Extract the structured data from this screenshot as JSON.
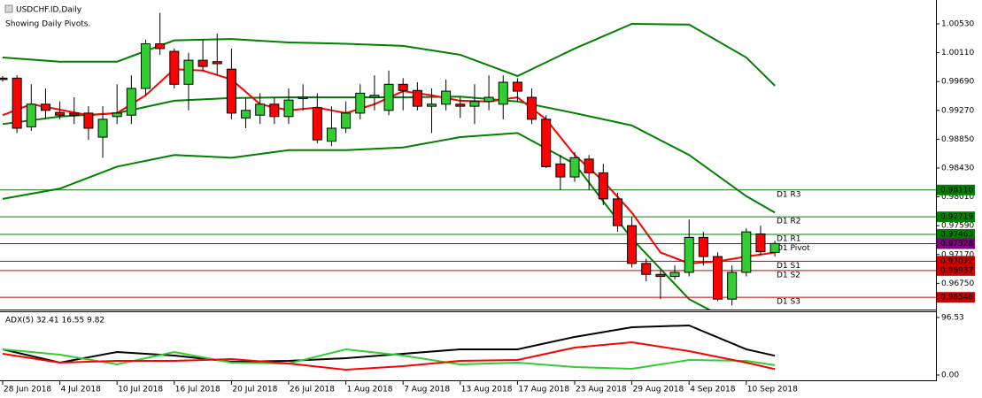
{
  "chart_data": [
    {
      "type": "candlestick",
      "title": "USDCHF.ID,Daily",
      "subtitle": "Showing Daily Pivots.",
      "categories": [
        "28 Jun 2018",
        null,
        null,
        null,
        "4 Jul 2018",
        null,
        null,
        null,
        "10 Jul 2018",
        null,
        null,
        null,
        "16 Jul 2018",
        null,
        null,
        null,
        "20 Jul 2018",
        null,
        null,
        null,
        "26 Jul 2018",
        null,
        null,
        null,
        "1 Aug 2018",
        null,
        null,
        null,
        "7 Aug 2018",
        null,
        null,
        null,
        "13 Aug 2018",
        null,
        null,
        null,
        "17 Aug 2018",
        null,
        null,
        null,
        "23 Aug 2018",
        null,
        null,
        null,
        "29 Aug 2018",
        null,
        null,
        null,
        "4 Sep 2018",
        null,
        null,
        null,
        "10 Sep 2018",
        null,
        null
      ],
      "open": [
        0.9974,
        0.9974,
        0.9903,
        0.9936,
        0.9924,
        0.9923,
        0.9923,
        0.9888,
        0.9918,
        0.992,
        0.9959,
        1.0024,
        1.0013,
        0.9965,
        1.0,
        0.9998,
        0.9987,
        0.9916,
        0.992,
        0.9936,
        0.9918,
        0.9944,
        0.9931,
        0.9882,
        0.9901,
        0.9923,
        0.9946,
        0.9927,
        0.9965,
        0.9956,
        0.9933,
        0.9936,
        0.9936,
        0.9933,
        0.994,
        0.9936,
        0.9968,
        0.9946,
        0.9914,
        0.9849,
        0.983,
        0.9856,
        0.9836,
        0.9798,
        0.9759,
        0.9704,
        0.9688,
        0.9685,
        0.9691,
        0.9742,
        0.9714,
        0.9652,
        0.9691,
        0.9747,
        0.972
      ],
      "high": [
        0.9977,
        0.9978,
        0.9965,
        0.9959,
        0.994,
        0.9946,
        0.9933,
        0.9933,
        0.9965,
        0.9978,
        1.003,
        1.0069,
        1.0017,
        1.0011,
        1.003,
        1.0039,
        1.0017,
        0.9946,
        0.9952,
        0.9946,
        0.9959,
        0.9965,
        0.9952,
        0.9933,
        0.994,
        0.9965,
        0.9978,
        0.9985,
        0.9974,
        0.9968,
        0.9959,
        0.9972,
        0.9946,
        0.9965,
        0.9978,
        0.9978,
        0.9974,
        0.9959,
        0.992,
        0.9862,
        0.9866,
        0.9862,
        0.9849,
        0.9807,
        0.9772,
        0.9711,
        0.9694,
        0.9701,
        0.9768,
        0.975,
        0.972,
        0.9701,
        0.9755,
        0.9759,
        0.9737
      ],
      "low": [
        0.9969,
        0.9894,
        0.9897,
        0.9916,
        0.9914,
        0.9907,
        0.9884,
        0.9858,
        0.9907,
        0.9907,
        0.9949,
        1.0008,
        0.9959,
        0.9927,
        0.9985,
        0.9978,
        0.9914,
        0.9901,
        0.9907,
        0.9907,
        0.9907,
        0.9927,
        0.9879,
        0.9875,
        0.9894,
        0.9914,
        0.9927,
        0.992,
        0.9927,
        0.9927,
        0.9894,
        0.9927,
        0.9916,
        0.9907,
        0.9927,
        0.9914,
        0.994,
        0.9907,
        0.9843,
        0.9811,
        0.9823,
        0.9811,
        0.9789,
        0.975,
        0.9698,
        0.9678,
        0.9652,
        0.9681,
        0.9685,
        0.9701,
        0.9649,
        0.9643,
        0.9685,
        0.9716,
        0.9714
      ],
      "close": [
        0.9972,
        0.9901,
        0.9936,
        0.9927,
        0.992,
        0.992,
        0.9901,
        0.9914,
        0.9923,
        0.9959,
        1.0024,
        1.0017,
        0.9965,
        1.0,
        0.9991,
        0.9995,
        0.9923,
        0.9927,
        0.9936,
        0.9918,
        0.9942,
        0.9946,
        0.9884,
        0.9901,
        0.9923,
        0.9952,
        0.9949,
        0.9965,
        0.9956,
        0.9933,
        0.9936,
        0.9955,
        0.9933,
        0.994,
        0.9946,
        0.9968,
        0.9955,
        0.9914,
        0.9845,
        0.983,
        0.9858,
        0.9836,
        0.9798,
        0.9759,
        0.9704,
        0.9688,
        0.9685,
        0.9691,
        0.9742,
        0.9714,
        0.9652,
        0.9691,
        0.975,
        0.9721,
        0.9733
      ],
      "up_color": "#32cd32",
      "down_color": "#ff0000",
      "ylim": [
        0.96368,
        1.00878
      ],
      "yticks": [
        {
          "value": 1.0053,
          "label": "1.00530"
        },
        {
          "value": 1.0011,
          "label": "1.00110"
        },
        {
          "value": 0.9969,
          "label": "0.99690"
        },
        {
          "value": 0.9927,
          "label": "0.99270"
        },
        {
          "value": 0.9885,
          "label": "0.98850"
        },
        {
          "value": 0.9843,
          "label": "0.98430"
        },
        {
          "value": 0.9801,
          "label": "0.98010"
        },
        {
          "value": 0.9759,
          "label": "0.97590"
        },
        {
          "value": 0.9717,
          "label": "0.97170"
        },
        {
          "value": 0.9675,
          "label": "0.96750"
        }
      ],
      "lines": [
        {
          "color": "#008000",
          "x": [
            0,
            4,
            8,
            12,
            16,
            20,
            24,
            28,
            32,
            36,
            40,
            44,
            48,
            52,
            54
          ],
          "values": [
            1.0004,
            0.9998,
            0.9998,
            1.0029,
            1.0031,
            1.0026,
            1.0024,
            1.0021,
            1.0008,
            0.9977,
            1.0017,
            1.0053,
            1.0052,
            1.0004,
            0.9963
          ]
        },
        {
          "color": "#008000",
          "x": [
            0,
            4,
            8,
            12,
            16,
            20,
            24,
            28,
            32,
            36,
            40,
            44,
            48,
            52,
            54
          ],
          "values": [
            0.9907,
            0.9918,
            0.9923,
            0.9941,
            0.9945,
            0.9946,
            0.9946,
            0.9946,
            0.9947,
            0.994,
            0.9923,
            0.9905,
            0.9862,
            0.9802,
            0.9778
          ]
        },
        {
          "color": "#008000",
          "x": [
            0,
            4,
            8,
            12,
            16,
            20,
            24,
            28,
            32,
            36,
            40,
            44,
            48,
            50
          ],
          "values": [
            0.9798,
            0.9813,
            0.9845,
            0.9862,
            0.9858,
            0.9869,
            0.9869,
            0.9873,
            0.9888,
            0.9894,
            0.9849,
            0.974,
            0.9652,
            0.963
          ]
        },
        {
          "color": "#ff0000",
          "x": [
            0,
            2,
            4,
            6,
            8,
            10,
            12,
            14,
            16,
            18,
            20,
            22,
            24,
            26,
            28,
            30,
            32,
            34,
            36,
            38,
            40,
            42,
            44,
            46,
            48,
            50,
            52,
            54
          ],
          "values": [
            0.992,
            0.9936,
            0.9928,
            0.992,
            0.9923,
            0.9949,
            0.9987,
            0.9985,
            0.9972,
            0.9936,
            0.9927,
            0.9931,
            0.9923,
            0.9936,
            0.9955,
            0.9949,
            0.9941,
            0.994,
            0.9946,
            0.9914,
            0.9862,
            0.9824,
            0.9778,
            0.972,
            0.9704,
            0.9707,
            0.9714,
            0.972
          ]
        }
      ],
      "pivots": {
        "names": [
          "D1 R3",
          "D1 R2",
          "D1 R1",
          "D1 Pivot",
          "D1 S1",
          "D1 S2",
          "D1 S3"
        ],
        "values": [
          0.9811,
          0.97719,
          0.97463,
          0.97328,
          0.97072,
          0.96937,
          0.96546
        ],
        "value_labels": [
          "0.98110",
          "0.97719",
          "0.97463",
          "0.97328",
          "0.97072",
          "0.96937",
          "0.96546"
        ],
        "colors": [
          "#008000",
          "#008000",
          "#008000",
          "#800080",
          "#cc0000",
          "#cc0000",
          "#cc0000"
        ]
      }
    },
    {
      "type": "line",
      "title": "ADX(5) 32.41 16.55 9.82",
      "ylim": [
        -8.9,
        105.4
      ],
      "yticks": [
        96.53,
        {
          "value": 0,
          "label": "0.00"
        }
      ],
      "series": [
        {
          "color": "#000000",
          "x": [
            0,
            4,
            8,
            12,
            16,
            20,
            24,
            28,
            32,
            36,
            40,
            44,
            48,
            52,
            54
          ],
          "values": [
            43.1,
            20.8,
            38.6,
            32.7,
            22.3,
            23.8,
            28.2,
            35.6,
            43.1,
            43.1,
            63.9,
            80.2,
            83.2,
            43.1,
            32.41
          ]
        },
        {
          "color": "#32cd32",
          "x": [
            0,
            4,
            8,
            12,
            16,
            20,
            24,
            28,
            32,
            36,
            40,
            44,
            48,
            52,
            54
          ],
          "values": [
            43.1,
            34.2,
            17.8,
            38.6,
            20.8,
            19.3,
            43.1,
            32.7,
            17.8,
            20.8,
            13.4,
            10.4,
            25.2,
            23.8,
            16.55
          ]
        },
        {
          "color": "#ff0000",
          "x": [
            0,
            4,
            8,
            12,
            16,
            20,
            24,
            28,
            32,
            36,
            40,
            44,
            48,
            52,
            54
          ],
          "values": [
            35.6,
            20.8,
            23.8,
            23.8,
            26.7,
            19.3,
            8.9,
            14.9,
            23.8,
            25.2,
            46.0,
            54.9,
            40.1,
            20.8,
            9.82
          ]
        }
      ]
    }
  ]
}
